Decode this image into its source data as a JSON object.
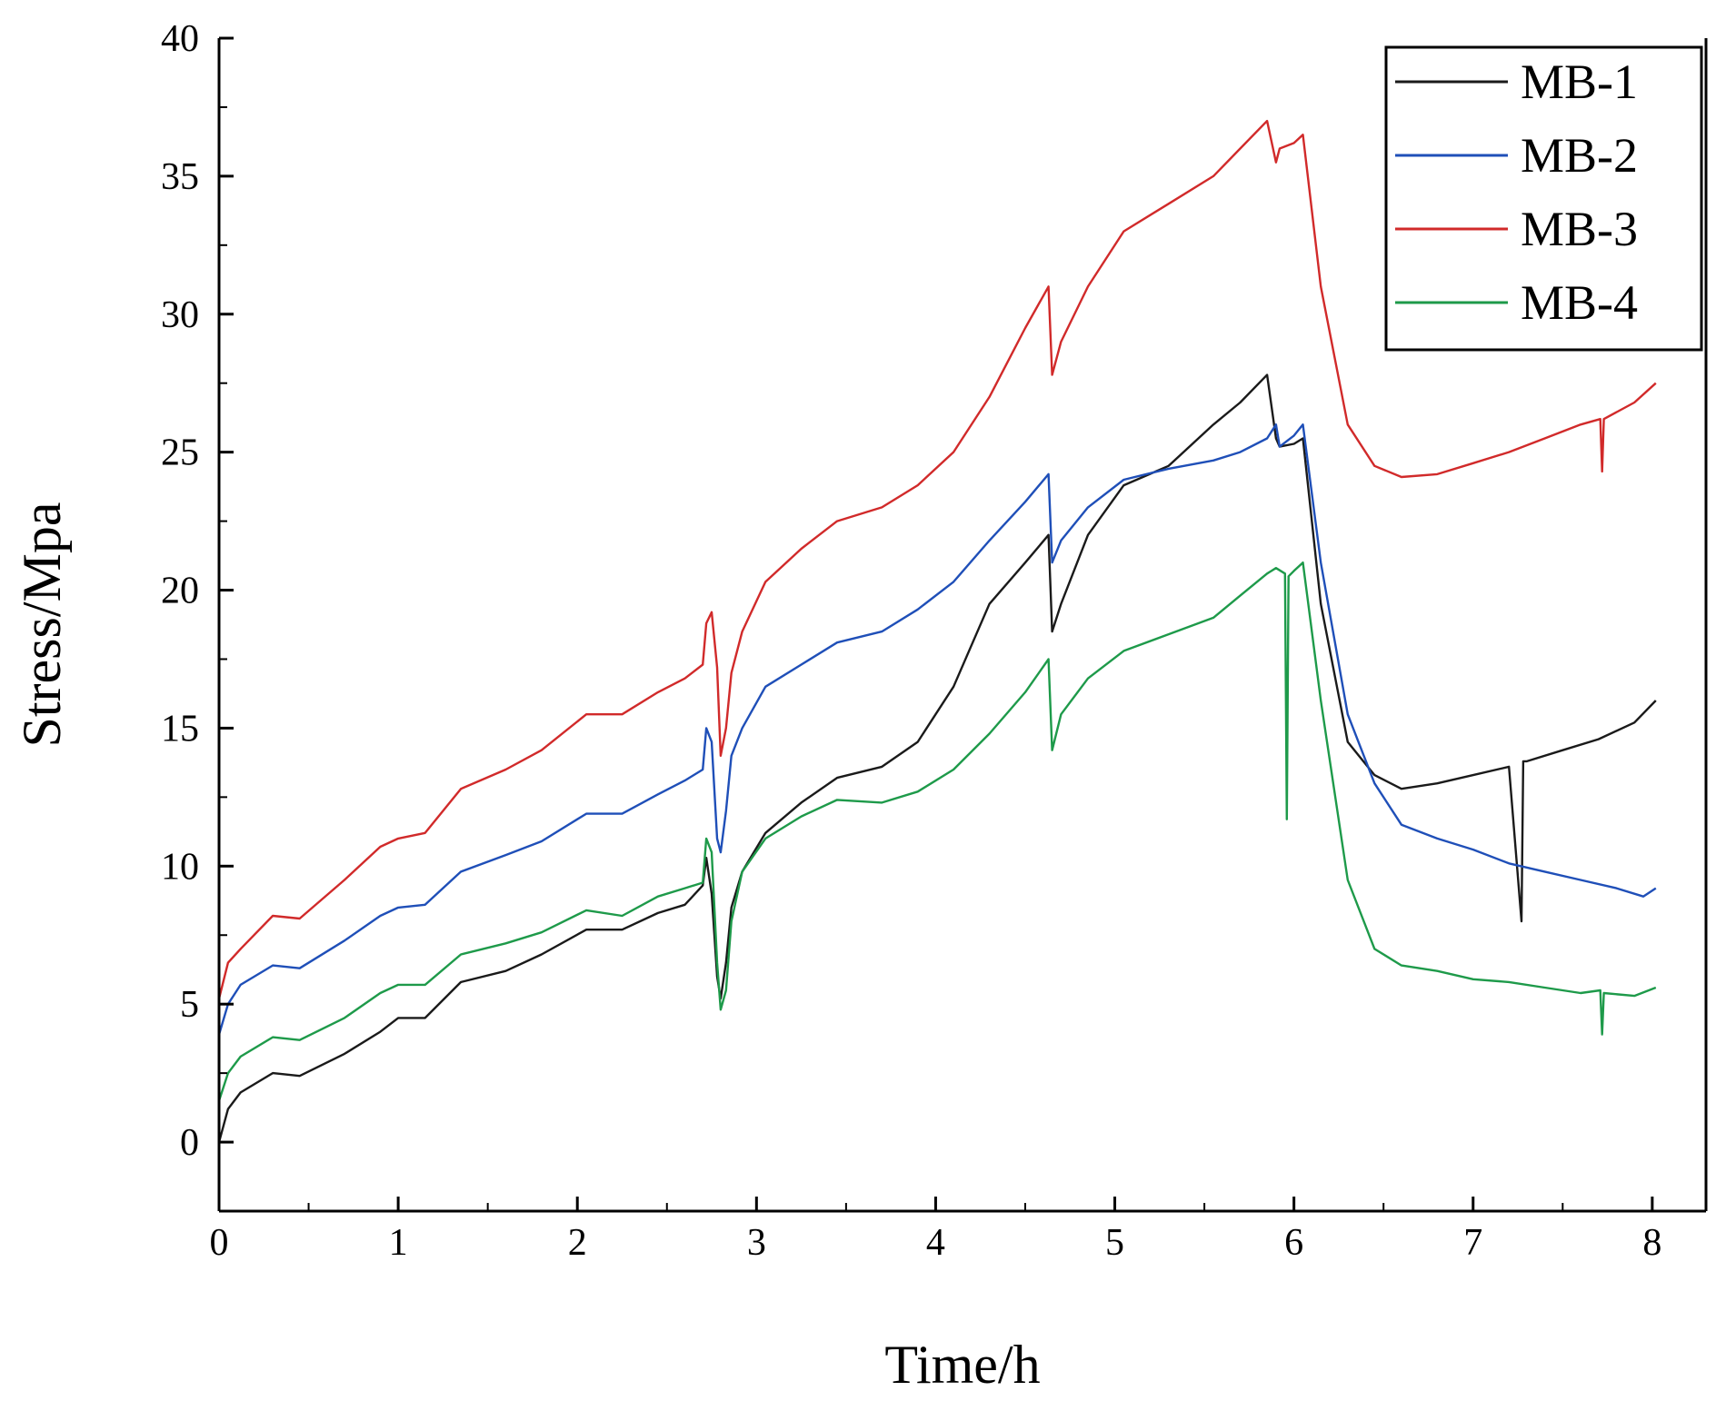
{
  "chart_data": {
    "type": "line",
    "title": "",
    "xlabel": "Time/h",
    "ylabel": "Stress/Mpa",
    "xlim": [
      0,
      8.3
    ],
    "ylim": [
      -2.5,
      40
    ],
    "xticks": [
      0,
      1,
      2,
      3,
      4,
      5,
      6,
      7,
      8
    ],
    "yticks": [
      0,
      5,
      10,
      15,
      20,
      25,
      30,
      35,
      40
    ],
    "grid": false,
    "legend_position": "top-right",
    "series": [
      {
        "name": "MB-1",
        "color": "#1a1a1a",
        "x": [
          0,
          0.05,
          0.12,
          0.3,
          0.45,
          0.7,
          0.9,
          1.0,
          1.15,
          1.35,
          1.6,
          1.8,
          2.05,
          2.25,
          2.45,
          2.6,
          2.7,
          2.72,
          2.75,
          2.78,
          2.8,
          2.83,
          2.86,
          2.92,
          3.05,
          3.25,
          3.45,
          3.7,
          3.9,
          4.1,
          4.3,
          4.5,
          4.63,
          4.65,
          4.7,
          4.85,
          5.05,
          5.3,
          5.55,
          5.7,
          5.85,
          5.9,
          5.92,
          6.0,
          6.05,
          6.15,
          6.3,
          6.45,
          6.6,
          6.8,
          7.0,
          7.2,
          7.27,
          7.28,
          7.3,
          7.5,
          7.7,
          7.9,
          8.02
        ],
        "values": [
          0.0,
          1.2,
          1.8,
          2.5,
          2.4,
          3.2,
          4.0,
          4.5,
          4.5,
          5.8,
          6.2,
          6.8,
          7.7,
          7.7,
          8.3,
          8.6,
          9.3,
          10.3,
          9.0,
          6.0,
          5.2,
          6.5,
          8.5,
          9.8,
          11.2,
          12.3,
          13.2,
          13.6,
          14.5,
          16.5,
          19.5,
          21.0,
          22.0,
          18.5,
          19.5,
          22.0,
          23.8,
          24.5,
          26.0,
          26.8,
          27.8,
          25.5,
          25.2,
          25.3,
          25.5,
          19.5,
          14.5,
          13.3,
          12.8,
          13.0,
          13.3,
          13.6,
          8.0,
          13.8,
          13.8,
          14.2,
          14.6,
          15.2,
          16.0
        ]
      },
      {
        "name": "MB-2",
        "color": "#1f4fb8",
        "x": [
          0,
          0.05,
          0.12,
          0.3,
          0.45,
          0.7,
          0.9,
          1.0,
          1.15,
          1.35,
          1.6,
          1.8,
          2.05,
          2.25,
          2.45,
          2.6,
          2.7,
          2.72,
          2.75,
          2.78,
          2.8,
          2.83,
          2.86,
          2.92,
          3.05,
          3.25,
          3.45,
          3.7,
          3.9,
          4.1,
          4.3,
          4.5,
          4.63,
          4.65,
          4.7,
          4.85,
          5.05,
          5.3,
          5.55,
          5.7,
          5.85,
          5.9,
          5.92,
          6.0,
          6.05,
          6.15,
          6.3,
          6.45,
          6.6,
          6.8,
          7.0,
          7.2,
          7.4,
          7.6,
          7.8,
          7.95,
          8.02
        ],
        "values": [
          3.9,
          5.0,
          5.7,
          6.4,
          6.3,
          7.3,
          8.2,
          8.5,
          8.6,
          9.8,
          10.4,
          10.9,
          11.9,
          11.9,
          12.6,
          13.1,
          13.5,
          15.0,
          14.5,
          11.0,
          10.5,
          12.0,
          14.0,
          15.0,
          16.5,
          17.3,
          18.1,
          18.5,
          19.3,
          20.3,
          21.8,
          23.2,
          24.2,
          21.0,
          21.8,
          23.0,
          24.0,
          24.4,
          24.7,
          25.0,
          25.5,
          26.0,
          25.2,
          25.6,
          26.0,
          21.0,
          15.5,
          13.0,
          11.5,
          11.0,
          10.6,
          10.1,
          9.8,
          9.5,
          9.2,
          8.9,
          9.2
        ]
      },
      {
        "name": "MB-3",
        "color": "#d12a2a",
        "x": [
          0,
          0.05,
          0.12,
          0.3,
          0.45,
          0.7,
          0.9,
          1.0,
          1.15,
          1.35,
          1.6,
          1.8,
          2.05,
          2.25,
          2.45,
          2.6,
          2.7,
          2.72,
          2.75,
          2.78,
          2.8,
          2.83,
          2.86,
          2.92,
          3.05,
          3.25,
          3.45,
          3.7,
          3.9,
          4.1,
          4.3,
          4.5,
          4.63,
          4.65,
          4.7,
          4.85,
          5.05,
          5.3,
          5.55,
          5.7,
          5.85,
          5.9,
          5.92,
          6.0,
          6.05,
          6.15,
          6.3,
          6.45,
          6.6,
          6.8,
          7.0,
          7.2,
          7.4,
          7.6,
          7.71,
          7.72,
          7.73,
          7.9,
          8.02
        ],
        "values": [
          5.2,
          6.5,
          7.0,
          8.2,
          8.1,
          9.5,
          10.7,
          11.0,
          11.2,
          12.8,
          13.5,
          14.2,
          15.5,
          15.5,
          16.3,
          16.8,
          17.3,
          18.8,
          19.2,
          17.2,
          14.0,
          15.0,
          17.0,
          18.5,
          20.3,
          21.5,
          22.5,
          23.0,
          23.8,
          25.0,
          27.0,
          29.5,
          31.0,
          27.8,
          29.0,
          31.0,
          33.0,
          34.0,
          35.0,
          36.0,
          37.0,
          35.5,
          36.0,
          36.2,
          36.5,
          31.0,
          26.0,
          24.5,
          24.1,
          24.2,
          24.6,
          25.0,
          25.5,
          26.0,
          26.2,
          24.3,
          26.2,
          26.8,
          27.5
        ]
      },
      {
        "name": "MB-4",
        "color": "#1e9a4a",
        "x": [
          0,
          0.05,
          0.12,
          0.3,
          0.45,
          0.7,
          0.9,
          1.0,
          1.15,
          1.35,
          1.6,
          1.8,
          2.05,
          2.25,
          2.45,
          2.6,
          2.7,
          2.72,
          2.75,
          2.78,
          2.8,
          2.83,
          2.86,
          2.92,
          3.05,
          3.25,
          3.45,
          3.7,
          3.9,
          4.1,
          4.3,
          4.5,
          4.63,
          4.65,
          4.7,
          4.85,
          5.05,
          5.3,
          5.55,
          5.7,
          5.85,
          5.9,
          5.95,
          5.96,
          5.97,
          6.0,
          6.05,
          6.15,
          6.3,
          6.45,
          6.6,
          6.8,
          7.0,
          7.2,
          7.4,
          7.6,
          7.71,
          7.72,
          7.73,
          7.9,
          8.02
        ],
        "values": [
          1.5,
          2.5,
          3.1,
          3.8,
          3.7,
          4.5,
          5.4,
          5.7,
          5.7,
          6.8,
          7.2,
          7.6,
          8.4,
          8.2,
          8.9,
          9.2,
          9.4,
          11.0,
          10.5,
          6.5,
          4.8,
          5.5,
          8.0,
          9.8,
          11.0,
          11.8,
          12.4,
          12.3,
          12.7,
          13.5,
          14.8,
          16.3,
          17.5,
          14.2,
          15.5,
          16.8,
          17.8,
          18.4,
          19.0,
          19.8,
          20.6,
          20.8,
          20.6,
          11.7,
          20.5,
          20.7,
          21.0,
          16.0,
          9.5,
          7.0,
          6.4,
          6.2,
          5.9,
          5.8,
          5.6,
          5.4,
          5.5,
          3.9,
          5.4,
          5.3,
          5.6
        ]
      }
    ]
  }
}
